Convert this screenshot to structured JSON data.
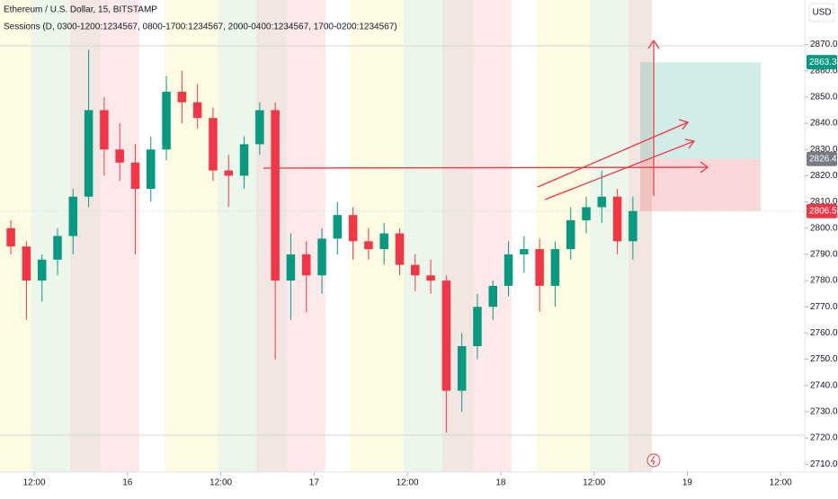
{
  "chart_data": {
    "type": "candlestick",
    "title": "Ethereum / U.S. Dollar, 15, BITSTAMP",
    "subtitle": "Sessions (D, 0300-1200:1234567, 0800-1700:1234567, 2000-0400:1234567, 1700-0200:1234567)",
    "currency": "USD",
    "x": [
      9,
      11,
      13,
      15,
      17,
      19,
      21,
      23,
      25,
      27,
      29,
      31,
      33,
      35,
      37,
      39,
      41,
      43,
      45,
      47,
      49,
      51,
      53,
      55,
      57,
      59,
      61,
      63,
      65,
      67,
      69,
      71,
      73,
      75,
      77,
      79,
      81,
      83,
      85,
      87,
      89
    ],
    "open": [
      2800,
      2793,
      2780,
      2788,
      2797,
      2812,
      2845,
      2830,
      2825,
      2815,
      2830,
      2852,
      2848,
      2842,
      2822,
      2820,
      2832,
      2845,
      2780,
      2790,
      2782,
      2796,
      2805,
      2795,
      2792,
      2798,
      2786,
      2782,
      2780,
      2738,
      2755,
      2770,
      2778,
      2790,
      2792,
      2778,
      2792,
      2803,
      2808,
      2812,
      2795
    ],
    "high": [
      2803,
      2795,
      2790,
      2800,
      2815,
      2868,
      2850,
      2840,
      2832,
      2835,
      2858,
      2860,
      2855,
      2846,
      2828,
      2835,
      2848,
      2848,
      2798,
      2795,
      2800,
      2810,
      2808,
      2800,
      2802,
      2800,
      2790,
      2788,
      2782,
      2760,
      2775,
      2780,
      2795,
      2797,
      2796,
      2795,
      2808,
      2812,
      2822,
      2815,
      2812
    ],
    "low": [
      2790,
      2765,
      2772,
      2782,
      2790,
      2808,
      2820,
      2818,
      2790,
      2810,
      2826,
      2840,
      2838,
      2818,
      2808,
      2815,
      2828,
      2750,
      2765,
      2768,
      2775,
      2790,
      2788,
      2788,
      2786,
      2782,
      2776,
      2775,
      2722,
      2730,
      2750,
      2765,
      2774,
      2783,
      2768,
      2770,
      2788,
      2798,
      2802,
      2790,
      2788
    ],
    "close": [
      2793,
      2780,
      2788,
      2797,
      2812,
      2845,
      2830,
      2825,
      2815,
      2830,
      2852,
      2848,
      2842,
      2822,
      2820,
      2832,
      2845,
      2780,
      2790,
      2782,
      2796,
      2805,
      2795,
      2792,
      2798,
      2786,
      2782,
      2780,
      2738,
      2755,
      2770,
      2778,
      2790,
      2792,
      2778,
      2792,
      2803,
      2808,
      2812,
      2795,
      2806.5
    ],
    "up_color": "#089981",
    "down_color": "#f23645",
    "xlim": [
      7.6,
      111.1
    ],
    "xticks": [
      {
        "value": 12,
        "label": "12:00"
      },
      {
        "value": 24,
        "label": "16"
      },
      {
        "value": 36,
        "label": "12:00"
      },
      {
        "value": 48,
        "label": "17"
      },
      {
        "value": 60,
        "label": "12:00"
      },
      {
        "value": 72,
        "label": "18"
      },
      {
        "value": 84,
        "label": "12:00"
      },
      {
        "value": 96,
        "label": "19"
      },
      {
        "value": 108,
        "label": "12:00"
      }
    ],
    "ylim": [
      2707,
      2887
    ],
    "yticks": [
      {
        "value": 2710,
        "label": "2710.0"
      },
      {
        "value": 2720,
        "label": "2720.0"
      },
      {
        "value": 2730,
        "label": "2730.0"
      },
      {
        "value": 2740,
        "label": "2740.0"
      },
      {
        "value": 2750,
        "label": "2750.0"
      },
      {
        "value": 2760,
        "label": "2760.0"
      },
      {
        "value": 2770,
        "label": "2770.0"
      },
      {
        "value": 2780,
        "label": "2780.0"
      },
      {
        "value": 2790,
        "label": "2790.0"
      },
      {
        "value": 2800,
        "label": "2800.0"
      },
      {
        "value": 2810,
        "label": "2810.0"
      },
      {
        "value": 2820,
        "label": "2820.0"
      },
      {
        "value": 2830,
        "label": "2830.0"
      },
      {
        "value": 2840,
        "label": "2840.0"
      },
      {
        "value": 2850,
        "label": "2850.0"
      },
      {
        "value": 2860,
        "label": "2860.0"
      },
      {
        "value": 2870,
        "label": "2870.0"
      }
    ],
    "position": {
      "target": 2863.3,
      "entry": 2826.4,
      "stop": 2806.5
    }
  }
}
